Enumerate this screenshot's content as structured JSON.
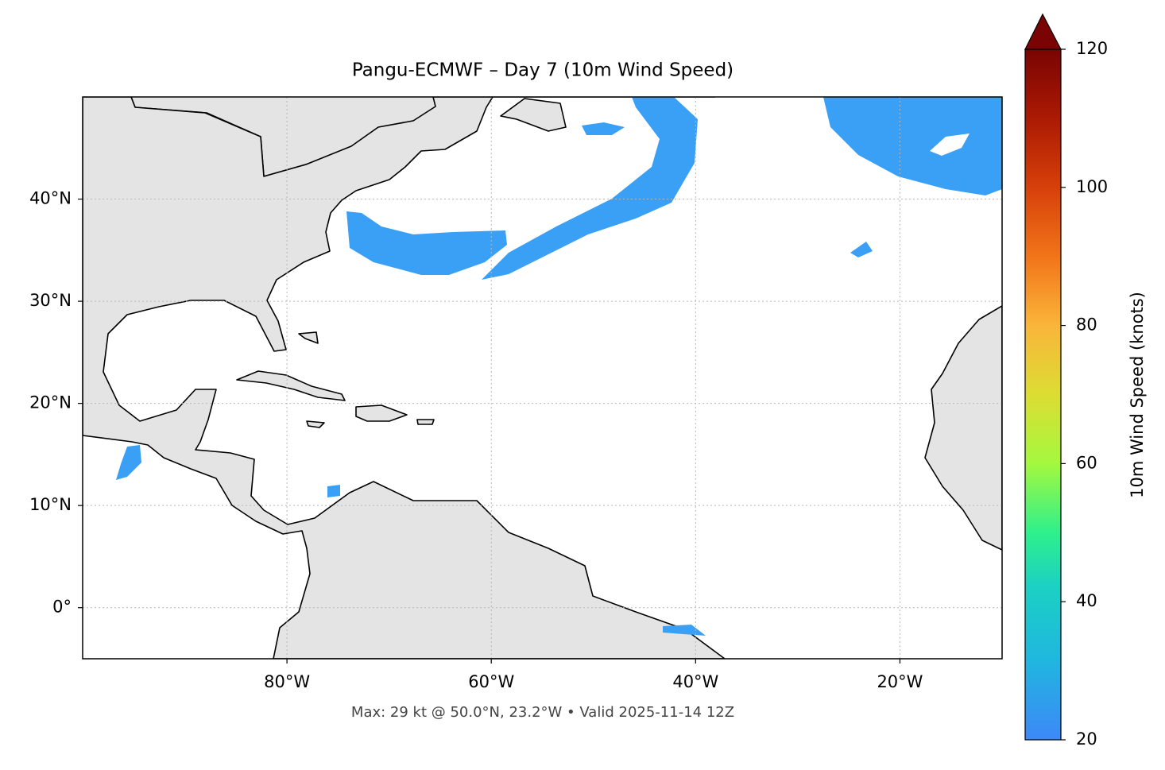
{
  "chart_data": {
    "type": "map",
    "title": "Pangu-ECMWF – Day 7 (10m Wind Speed)",
    "caption": "Max: 29 kt @ 50.0°N, 23.2°W • Valid 2025-11-14 12Z",
    "xlim": [
      -100,
      -10
    ],
    "ylim": [
      -5,
      50
    ],
    "xticks": [
      {
        "value": -80,
        "label": "80°W"
      },
      {
        "value": -60,
        "label": "60°W"
      },
      {
        "value": -40,
        "label": "40°W"
      },
      {
        "value": -20,
        "label": "20°W"
      }
    ],
    "yticks": [
      {
        "value": 0,
        "label": "0°"
      },
      {
        "value": 10,
        "label": "10°N"
      },
      {
        "value": 20,
        "label": "20°N"
      },
      {
        "value": 30,
        "label": "30°N"
      },
      {
        "value": 40,
        "label": "40°N"
      }
    ],
    "grid": true,
    "colorbar": {
      "label": "10m Wind Speed (knots)",
      "lim": [
        20,
        120
      ],
      "ticks": [
        20,
        40,
        60,
        80,
        100,
        120
      ]
    }
  }
}
